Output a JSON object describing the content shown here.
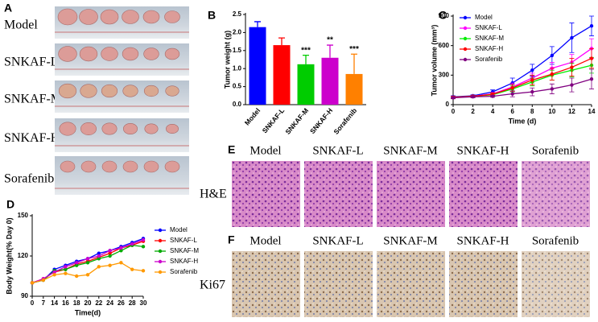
{
  "panel_a": {
    "label": "A",
    "rows": [
      "Model",
      "SNKAF-L",
      "SNKAF-M",
      "SNKAF-H",
      "Sorafenib"
    ]
  },
  "chart_data": [
    {
      "type": "bar",
      "panel_label": "B",
      "ylabel": "Tumor weight (g)",
      "categories": [
        "Model",
        "SNKAF-L",
        "SNKAF-M",
        "SNKAF-H",
        "Sorafenib"
      ],
      "values": [
        2.15,
        1.65,
        1.12,
        1.3,
        0.85
      ],
      "errors": [
        0.15,
        0.2,
        0.25,
        0.35,
        0.55
      ],
      "annotations": [
        null,
        null,
        "***",
        "**",
        "***"
      ],
      "colors": [
        "#0000ff",
        "#ff0000",
        "#00cc00",
        "#cc00cc",
        "#ff8000"
      ],
      "ylim": [
        0,
        2.5
      ],
      "yticks": [
        {
          "value": 0,
          "label": "0.0"
        },
        {
          "value": 0.5,
          "label": "0.5"
        },
        {
          "value": 1,
          "label": "1.0"
        },
        {
          "value": 1.5,
          "label": "1.5"
        },
        {
          "value": 2,
          "label": "2.0"
        },
        {
          "value": 2.5,
          "label": "2.5"
        }
      ]
    },
    {
      "type": "line",
      "panel_label": "C",
      "xlabel": "Time  (d)",
      "ylabel": "Tumor volume (mm³)",
      "x": [
        0,
        2,
        4,
        6,
        8,
        10,
        12,
        14
      ],
      "xlim": [
        0,
        14
      ],
      "xticks": [
        0,
        2,
        4,
        6,
        8,
        10,
        12,
        14
      ],
      "ylim": [
        0,
        900
      ],
      "yticks": [
        0,
        300,
        600,
        900
      ],
      "legend": "upper left",
      "series": [
        {
          "name": "Model",
          "color": "#0000ff",
          "values": [
            80,
            90,
            130,
            220,
            350,
            500,
            680,
            800
          ],
          "errors": [
            10,
            10,
            20,
            50,
            60,
            90,
            150,
            100
          ]
        },
        {
          "name": "SNKAF-L",
          "color": "#ff00ff",
          "values": [
            75,
            85,
            110,
            180,
            270,
            370,
            430,
            570
          ],
          "errors": [
            10,
            10,
            15,
            40,
            50,
            60,
            80,
            100
          ]
        },
        {
          "name": "SNKAF-M",
          "color": "#00ee00",
          "values": [
            75,
            85,
            100,
            160,
            230,
            300,
            350,
            400
          ],
          "errors": [
            10,
            10,
            15,
            30,
            40,
            50,
            70,
            80
          ]
        },
        {
          "name": "SNKAF-H",
          "color": "#ff0000",
          "values": [
            75,
            85,
            105,
            170,
            250,
            310,
            380,
            470
          ],
          "errors": [
            10,
            10,
            15,
            35,
            50,
            60,
            90,
            100
          ]
        },
        {
          "name": "Sorafenib",
          "color": "#800080",
          "values": [
            70,
            80,
            85,
            110,
            130,
            160,
            200,
            260
          ],
          "errors": [
            10,
            10,
            10,
            30,
            40,
            50,
            70,
            100
          ]
        }
      ]
    },
    {
      "type": "line",
      "panel_label": "D",
      "xlabel": "Time(d)",
      "ylabel": "Body Weight(% Day 0)",
      "categories": [
        "0",
        "7",
        "14",
        "16",
        "18",
        "20",
        "22",
        "24",
        "26",
        "28",
        "30"
      ],
      "ylim": [
        90,
        150
      ],
      "yticks": [
        90,
        120,
        150
      ],
      "legend": "right",
      "series": [
        {
          "name": "Model",
          "color": "#0000ff",
          "values": [
            100,
            102,
            110,
            113,
            116,
            118,
            122,
            124,
            127,
            130,
            133
          ]
        },
        {
          "name": "SNKAF-L",
          "color": "#ff0000",
          "values": [
            100,
            103,
            108,
            110,
            114,
            116,
            119,
            122,
            126,
            128,
            131
          ]
        },
        {
          "name": "SNKAF-M",
          "color": "#00aa00",
          "values": [
            100,
            102,
            109,
            110,
            113,
            115,
            118,
            120,
            124,
            128,
            127
          ]
        },
        {
          "name": "SNKAF-H",
          "color": "#cc00cc",
          "values": [
            100,
            103,
            108,
            112,
            115,
            118,
            120,
            124,
            126,
            129,
            132
          ]
        },
        {
          "name": "Sorafenib",
          "color": "#ff9900",
          "values": [
            100,
            102,
            106,
            107,
            105,
            106,
            112,
            113,
            115,
            110,
            109
          ]
        }
      ]
    }
  ],
  "panel_e": {
    "label": "E",
    "columns": [
      "Model",
      "SNKAF-L",
      "SNKAF-M",
      "SNKAF-H",
      "Sorafenib"
    ],
    "row_label": "H&E"
  },
  "panel_f": {
    "label": "F",
    "columns": [
      "Model",
      "SNKAF-L",
      "SNKAF-M",
      "SNKAF-H",
      "Sorafenib"
    ],
    "row_label": "Ki67"
  }
}
